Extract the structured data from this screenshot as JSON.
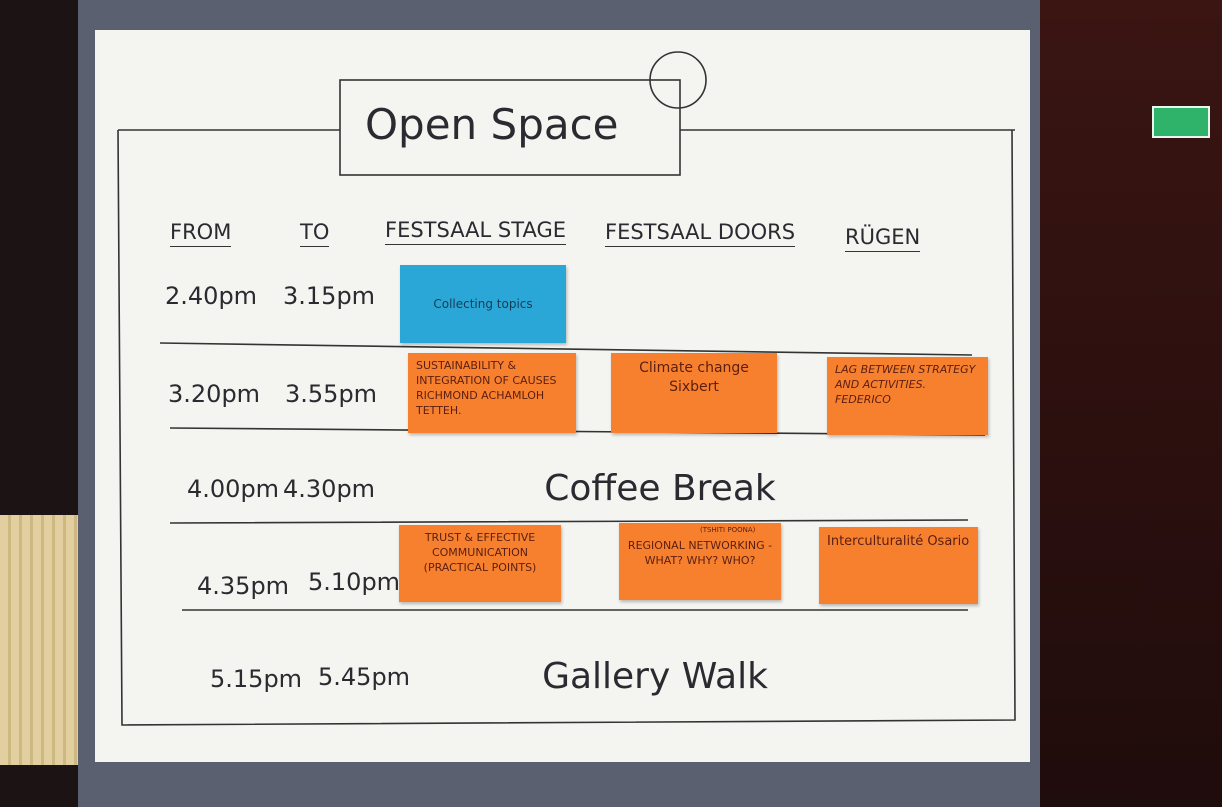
{
  "board": {
    "title": "Open Space",
    "headers": [
      "FROM",
      "TO",
      "FESTSAAL STAGE",
      "FESTSAAL DOORS",
      "RÜGEN"
    ],
    "rows": [
      {
        "from": "2.40pm",
        "to": "3.15pm",
        "stage": "Collecting topics"
      },
      {
        "from": "3.20pm",
        "to": "3.55pm",
        "stage": "SUSTAINABILITY & INTEGRATION OF CAUSES RICHMOND ACHAMLOH TETTEH.",
        "doors": "Climate change Sixbert",
        "rugen": "LAG BETWEEN STRATEGY AND ACTIVITIES. FEDERICO"
      },
      {
        "from": "4.00pm",
        "to": "4.30pm",
        "event": "Coffee Break"
      },
      {
        "from": "4.35pm",
        "to": "5.10pm",
        "stage": "TRUST & EFFECTIVE COMMUNICATION (PRACTICAL POINTS)",
        "doors": "REGIONAL NETWORKING - WHAT? WHY? WHO?",
        "doors_note": "(TSHITI POONA)",
        "rugen": "Interculturalité Osario"
      },
      {
        "from": "5.15pm",
        "to": "5.45pm",
        "event": "Gallery Walk"
      }
    ]
  }
}
